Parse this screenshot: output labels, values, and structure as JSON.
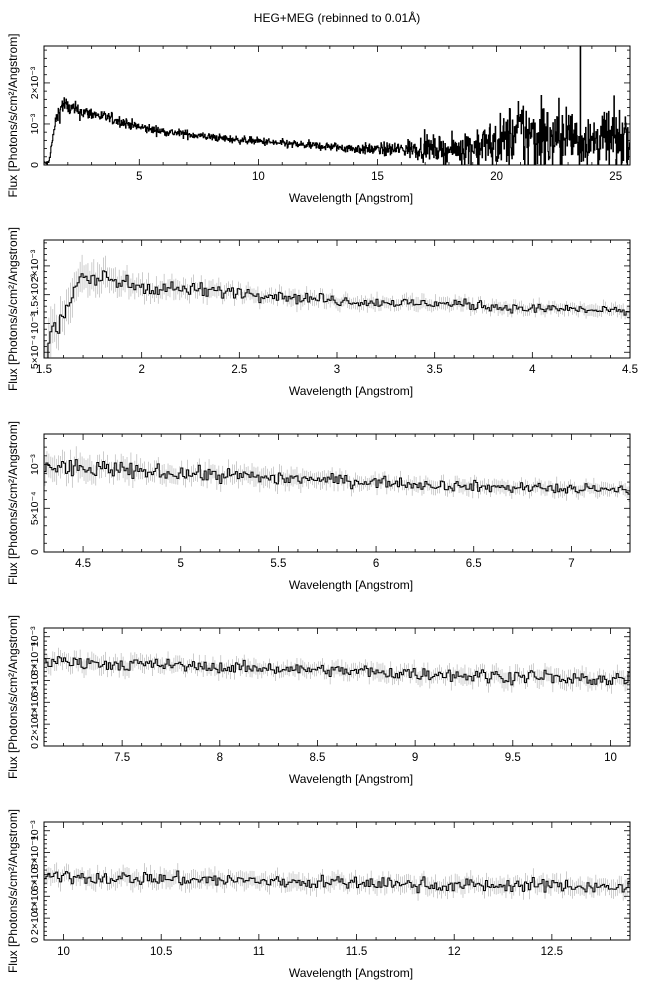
{
  "title": "HEG+MEG (rebinned to 0.01Å)",
  "chart_data": [
    {
      "type": "line",
      "title": "",
      "xlabel": "Wavelength [Angstrom]",
      "ylabel": "Flux [Photons/s/cm²/Angstrom]",
      "xlim": [
        1.0,
        25.6
      ],
      "ylim": [
        0,
        0.0029
      ],
      "xticks": [
        5,
        10,
        15,
        20,
        25
      ],
      "yticks": [
        {
          "value": 0,
          "label": "0"
        },
        {
          "value": 0.001,
          "label": "10⁻³"
        },
        {
          "value": 0.002,
          "label": "2×10⁻³"
        }
      ],
      "series": [
        {
          "style": "step",
          "x": [
            1.2,
            1.5,
            1.8,
            2.0,
            2.5,
            3.0,
            4.0,
            5.0,
            6.0,
            7.0,
            8.0,
            9.0,
            10.0,
            11.0,
            12.0,
            13.0,
            14.0,
            15.0,
            16.0,
            17.0,
            18.0,
            19.0,
            20.0,
            21.0,
            22.0,
            23.0,
            24.0,
            25.0,
            25.5
          ],
          "y": [
            5e-05,
            0.0011,
            0.0015,
            0.0014,
            0.0013,
            0.00125,
            0.0011,
            0.00092,
            0.00082,
            0.00075,
            0.00068,
            0.00062,
            0.00058,
            0.00052,
            0.00048,
            0.00045,
            0.0004,
            0.00038,
            0.00038,
            0.00042,
            0.00035,
            0.00045,
            0.0005,
            0.0008,
            0.0006,
            0.0007,
            0.0006,
            0.00065,
            0.0006
          ],
          "noise": [
            5e-05,
            0.0002,
            0.00025,
            0.0002,
            0.00018,
            0.00015,
            0.00013,
            0.00012,
            0.0001,
            0.0001,
            9e-05,
            9e-05,
            9e-05,
            0.0001,
            0.0001,
            0.0001,
            0.00012,
            0.00014,
            0.0002,
            0.0003,
            0.0003,
            0.0005,
            0.0006,
            0.0009,
            0.0009,
            0.0008,
            0.0008,
            0.0007,
            0.0006
          ]
        }
      ]
    },
    {
      "type": "line",
      "title": "",
      "xlabel": "Wavelength [Angstrom]",
      "ylabel": "Flux [Photons/s/cm²/Angstrom]",
      "xlim": [
        1.5,
        4.5
      ],
      "ylim": [
        0.0004,
        0.00245
      ],
      "xticks": [
        1.5,
        2,
        2.5,
        3,
        3.5,
        4,
        4.5
      ],
      "yticks": [
        {
          "value": 0.0005,
          "label": "5×10⁻⁴"
        },
        {
          "value": 0.001,
          "label": "10⁻³"
        },
        {
          "value": 0.0015,
          "label": "1.5×10⁻³"
        },
        {
          "value": 0.002,
          "label": "2×10⁻³"
        }
      ],
      "series": [
        {
          "style": "step",
          "x": [
            1.5,
            1.55,
            1.6,
            1.65,
            1.7,
            1.75,
            1.8,
            1.9,
            2.0,
            2.2,
            2.5,
            2.8,
            3.0,
            3.3,
            3.5,
            3.8,
            4.0,
            4.2,
            4.5
          ],
          "y": [
            0.0005,
            0.0008,
            0.0011,
            0.0016,
            0.0019,
            0.0017,
            0.00175,
            0.0017,
            0.00165,
            0.0016,
            0.00155,
            0.00145,
            0.0014,
            0.00135,
            0.00135,
            0.0013,
            0.00125,
            0.00125,
            0.0012
          ],
          "noise": [
            0.0003,
            0.0003,
            0.00028,
            0.00025,
            0.00022,
            0.0002,
            0.0002,
            0.00015,
            0.00014,
            0.00012,
            0.0001,
            0.0001,
            9e-05,
            9e-05,
            9e-05,
            8e-05,
            8e-05,
            8e-05,
            8e-05
          ]
        }
      ]
    },
    {
      "type": "line",
      "title": "",
      "xlabel": "Wavelength [Angstrom]",
      "ylabel": "Flux [Photons/s/cm²/Angstrom]",
      "xlim": [
        4.3,
        7.3
      ],
      "ylim": [
        0,
        0.00135
      ],
      "xticks": [
        4.5,
        5,
        5.5,
        6,
        6.5,
        7
      ],
      "yticks": [
        {
          "value": 0,
          "label": "0"
        },
        {
          "value": 0.0005,
          "label": "5×10⁻⁴"
        },
        {
          "value": 0.001,
          "label": "10⁻³"
        }
      ],
      "series": [
        {
          "style": "step",
          "x": [
            4.3,
            4.5,
            5.0,
            5.5,
            6.0,
            6.5,
            7.0,
            7.3
          ],
          "y": [
            0.00098,
            0.00095,
            0.0009,
            0.00085,
            0.0008,
            0.00075,
            0.00072,
            0.0007
          ],
          "noise": [
            0.00012,
            0.0001,
            8e-05,
            8e-05,
            6e-05,
            6e-05,
            6e-05,
            6e-05
          ]
        }
      ]
    },
    {
      "type": "line",
      "title": "",
      "xlabel": "Wavelength [Angstrom]",
      "ylabel": "Flux [Photons/s/cm²/Angstrom]",
      "xlim": [
        7.1,
        10.1
      ],
      "ylim": [
        0,
        0.00108
      ],
      "xticks": [
        7.5,
        8,
        8.5,
        9,
        9.5,
        10
      ],
      "yticks": [
        {
          "value": 0,
          "label": "0"
        },
        {
          "value": 0.0002,
          "label": "2×10⁻⁴"
        },
        {
          "value": 0.0004,
          "label": "4×10⁻⁴"
        },
        {
          "value": 0.0006,
          "label": "6×10⁻⁴"
        },
        {
          "value": 0.0008,
          "label": "8×10⁻⁴"
        },
        {
          "value": 0.001,
          "label": "10⁻³"
        }
      ],
      "series": [
        {
          "style": "step",
          "x": [
            7.1,
            7.5,
            8.0,
            8.5,
            9.0,
            9.5,
            10.0,
            10.1
          ],
          "y": [
            0.00078,
            0.00075,
            0.00072,
            0.0007,
            0.00066,
            0.00064,
            0.0006,
            0.0006
          ],
          "noise": [
            6e-05,
            6e-05,
            5e-05,
            5e-05,
            6e-05,
            6e-05,
            6e-05,
            6e-05
          ]
        }
      ]
    },
    {
      "type": "line",
      "title": "",
      "xlabel": "Wavelength [Angstrom]",
      "ylabel": "Flux [Photons/s/cm²/Angstrom]",
      "xlim": [
        9.9,
        12.9
      ],
      "ylim": [
        0,
        0.00108
      ],
      "xticks": [
        10,
        10.5,
        11,
        11.5,
        12,
        12.5
      ],
      "yticks": [
        {
          "value": 0,
          "label": "0"
        },
        {
          "value": 0.0002,
          "label": "2×10⁻⁴"
        },
        {
          "value": 0.0004,
          "label": "4×10⁻⁴"
        },
        {
          "value": 0.0006,
          "label": "6×10⁻⁴"
        },
        {
          "value": 0.0008,
          "label": "8×10⁻⁴"
        },
        {
          "value": 0.001,
          "label": "10⁻³"
        }
      ],
      "series": [
        {
          "style": "step",
          "x": [
            9.9,
            10.5,
            11.0,
            11.5,
            12.0,
            12.5,
            12.9
          ],
          "y": [
            0.00058,
            0.00056,
            0.00054,
            0.00052,
            0.0005,
            0.0005,
            0.00048
          ],
          "noise": [
            6e-05,
            6e-05,
            6e-05,
            6e-05,
            6e-05,
            6e-05,
            6e-05
          ]
        }
      ]
    }
  ]
}
